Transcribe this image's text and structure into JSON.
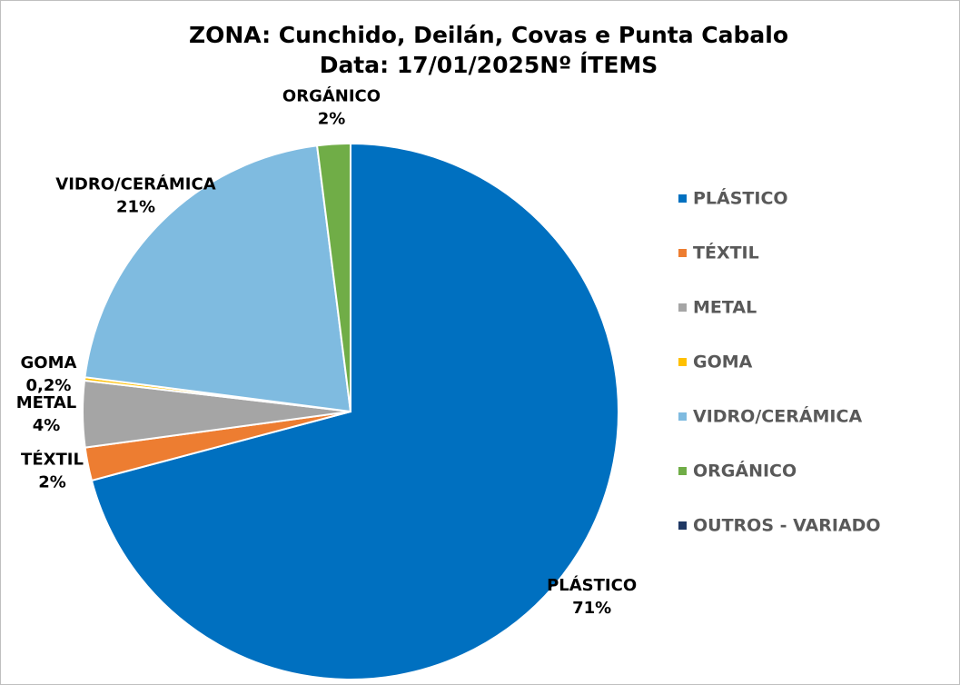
{
  "chart_data": {
    "type": "pie",
    "title": "ZONA: Cunchido, Deilán, Covas e Punta Cabalo",
    "subtitle": "Data: 17/01/2025Nº  ÍTEMS",
    "categories": [
      "PLÁSTICO",
      "TÉXTIL",
      "METAL",
      "GOMA",
      "VIDRO/CERÁMICA",
      "ORGÁNICO",
      "OUTROS - VARIADO"
    ],
    "values": [
      71,
      2,
      4,
      0.2,
      21,
      2,
      0
    ],
    "value_labels": [
      "71%",
      "2%",
      "4%",
      "0,2%",
      "21%",
      "2%",
      null
    ],
    "colors": [
      "#0070c0",
      "#ed7d31",
      "#a5a5a5",
      "#ffc000",
      "#7fbbe0",
      "#70ad47",
      "#1f3864"
    ],
    "legend": "right"
  }
}
